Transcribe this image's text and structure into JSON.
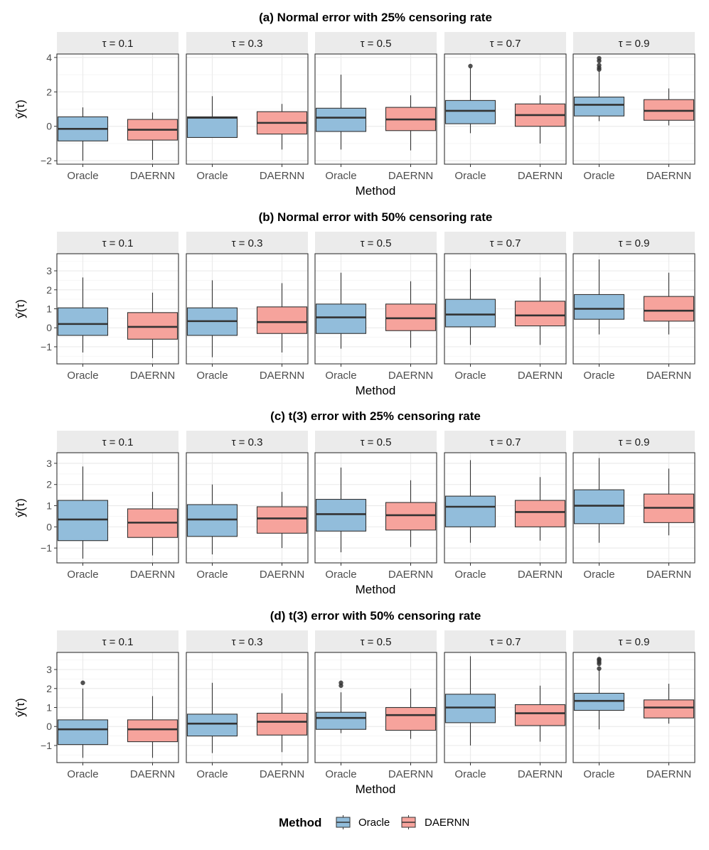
{
  "chart_data": {
    "type": "boxplot",
    "legend": {
      "title": "Method",
      "position": "bottom",
      "entries": [
        {
          "label": "Oracle",
          "color": "#92BDDB"
        },
        {
          "label": "DAERNN",
          "color": "#F6A39C"
        }
      ]
    },
    "categories": [
      "Oracle",
      "DAERNN"
    ],
    "xlabel": "Method",
    "ylabel": "ŷ(τ)",
    "facet_labels": [
      "τ = 0.1",
      "τ = 0.3",
      "τ = 0.5",
      "τ = 0.7",
      "τ = 0.9"
    ],
    "panels": [
      {
        "title": "(a)  Normal error with 25% censoring rate",
        "ylim": [
          -2.2,
          4.2
        ],
        "yticks": [
          -2,
          0,
          2,
          4
        ],
        "facets": [
          {
            "Oracle": {
              "min": -2.0,
              "q1": -0.85,
              "median": -0.15,
              "q3": 0.55,
              "max": 1.1,
              "outliers": []
            },
            "DAERNN": {
              "min": -1.95,
              "q1": -0.8,
              "median": -0.2,
              "q3": 0.4,
              "max": 0.8,
              "outliers": []
            }
          },
          {
            "Oracle": {
              "min": -0.65,
              "q1": -0.65,
              "median": 0.5,
              "q3": 0.55,
              "max": 1.75,
              "outliers": []
            },
            "DAERNN": {
              "min": -1.35,
              "q1": -0.45,
              "median": 0.2,
              "q3": 0.85,
              "max": 1.3,
              "outliers": []
            }
          },
          {
            "Oracle": {
              "min": -1.35,
              "q1": -0.3,
              "median": 0.5,
              "q3": 1.05,
              "max": 3.0,
              "outliers": []
            },
            "DAERNN": {
              "min": -1.4,
              "q1": -0.25,
              "median": 0.4,
              "q3": 1.1,
              "max": 1.8,
              "outliers": []
            }
          },
          {
            "Oracle": {
              "min": -0.4,
              "q1": 0.15,
              "median": 0.9,
              "q3": 1.5,
              "max": 3.4,
              "outliers": [
                3.5
              ]
            },
            "DAERNN": {
              "min": -1.0,
              "q1": 0.0,
              "median": 0.65,
              "q3": 1.3,
              "max": 1.8,
              "outliers": []
            }
          },
          {
            "Oracle": {
              "min": 0.3,
              "q1": 0.6,
              "median": 1.25,
              "q3": 1.7,
              "max": 3.2,
              "outliers": [
                3.3,
                3.4,
                3.55,
                3.8,
                3.95
              ]
            },
            "DAERNN": {
              "min": 0.05,
              "q1": 0.35,
              "median": 0.9,
              "q3": 1.55,
              "max": 2.2,
              "outliers": []
            }
          }
        ]
      },
      {
        "title": "(b)  Normal error with 50% censoring rate",
        "ylim": [
          -1.9,
          3.9
        ],
        "yticks": [
          -1,
          0,
          1,
          2,
          3
        ],
        "facets": [
          {
            "Oracle": {
              "min": -1.3,
              "q1": -0.4,
              "median": 0.2,
              "q3": 1.05,
              "max": 2.65,
              "outliers": []
            },
            "DAERNN": {
              "min": -1.6,
              "q1": -0.6,
              "median": 0.05,
              "q3": 0.8,
              "max": 1.85,
              "outliers": []
            }
          },
          {
            "Oracle": {
              "min": -1.55,
              "q1": -0.4,
              "median": 0.35,
              "q3": 1.05,
              "max": 2.5,
              "outliers": []
            },
            "DAERNN": {
              "min": -1.3,
              "q1": -0.3,
              "median": 0.3,
              "q3": 1.1,
              "max": 2.35,
              "outliers": []
            }
          },
          {
            "Oracle": {
              "min": -1.1,
              "q1": -0.3,
              "median": 0.55,
              "q3": 1.25,
              "max": 2.9,
              "outliers": []
            },
            "DAERNN": {
              "min": -1.05,
              "q1": -0.15,
              "median": 0.5,
              "q3": 1.25,
              "max": 2.45,
              "outliers": []
            }
          },
          {
            "Oracle": {
              "min": -0.9,
              "q1": 0.05,
              "median": 0.7,
              "q3": 1.5,
              "max": 3.1,
              "outliers": []
            },
            "DAERNN": {
              "min": -0.9,
              "q1": 0.1,
              "median": 0.65,
              "q3": 1.4,
              "max": 2.65,
              "outliers": []
            }
          },
          {
            "Oracle": {
              "min": -0.35,
              "q1": 0.45,
              "median": 1.0,
              "q3": 1.75,
              "max": 3.6,
              "outliers": []
            },
            "DAERNN": {
              "min": -0.35,
              "q1": 0.35,
              "median": 0.9,
              "q3": 1.65,
              "max": 2.9,
              "outliers": []
            }
          }
        ]
      },
      {
        "title": "(c)  t(3) error with 25% censoring rate",
        "ylim": [
          -1.7,
          3.5
        ],
        "yticks": [
          -1,
          0,
          1,
          2,
          3
        ],
        "facets": [
          {
            "Oracle": {
              "min": -1.5,
              "q1": -0.65,
              "median": 0.35,
              "q3": 1.25,
              "max": 2.85,
              "outliers": []
            },
            "DAERNN": {
              "min": -1.35,
              "q1": -0.5,
              "median": 0.2,
              "q3": 0.85,
              "max": 1.65,
              "outliers": []
            }
          },
          {
            "Oracle": {
              "min": -1.3,
              "q1": -0.45,
              "median": 0.35,
              "q3": 1.05,
              "max": 2.0,
              "outliers": []
            },
            "DAERNN": {
              "min": -1.0,
              "q1": -0.3,
              "median": 0.4,
              "q3": 0.95,
              "max": 1.65,
              "outliers": []
            }
          },
          {
            "Oracle": {
              "min": -1.2,
              "q1": -0.2,
              "median": 0.6,
              "q3": 1.3,
              "max": 2.8,
              "outliers": []
            },
            "DAERNN": {
              "min": -0.95,
              "q1": -0.15,
              "median": 0.55,
              "q3": 1.15,
              "max": 2.2,
              "outliers": []
            }
          },
          {
            "Oracle": {
              "min": -0.75,
              "q1": 0.0,
              "median": 0.95,
              "q3": 1.45,
              "max": 3.15,
              "outliers": []
            },
            "DAERNN": {
              "min": -0.65,
              "q1": 0.0,
              "median": 0.7,
              "q3": 1.25,
              "max": 2.35,
              "outliers": []
            }
          },
          {
            "Oracle": {
              "min": -0.75,
              "q1": 0.15,
              "median": 1.0,
              "q3": 1.75,
              "max": 3.25,
              "outliers": []
            },
            "DAERNN": {
              "min": -0.4,
              "q1": 0.2,
              "median": 0.9,
              "q3": 1.55,
              "max": 2.75,
              "outliers": []
            }
          }
        ]
      },
      {
        "title": "(d)  t(3) error with 50% censoring rate",
        "ylim": [
          -1.9,
          3.9
        ],
        "yticks": [
          -1,
          0,
          1,
          2,
          3
        ],
        "facets": [
          {
            "Oracle": {
              "min": -1.65,
              "q1": -0.95,
              "median": -0.15,
              "q3": 0.35,
              "max": 2.0,
              "outliers": [
                2.3
              ]
            },
            "DAERNN": {
              "min": -1.65,
              "q1": -0.8,
              "median": -0.15,
              "q3": 0.35,
              "max": 1.6,
              "outliers": []
            }
          },
          {
            "Oracle": {
              "min": -1.4,
              "q1": -0.5,
              "median": 0.15,
              "q3": 0.65,
              "max": 2.3,
              "outliers": []
            },
            "DAERNN": {
              "min": -1.35,
              "q1": -0.45,
              "median": 0.25,
              "q3": 0.7,
              "max": 1.75,
              "outliers": []
            }
          },
          {
            "Oracle": {
              "min": -0.35,
              "q1": -0.15,
              "median": 0.45,
              "q3": 0.75,
              "max": 1.8,
              "outliers": [
                2.15,
                2.3
              ]
            },
            "DAERNN": {
              "min": -0.65,
              "q1": -0.2,
              "median": 0.6,
              "q3": 1.0,
              "max": 2.0,
              "outliers": []
            }
          },
          {
            "Oracle": {
              "min": -1.0,
              "q1": 0.2,
              "median": 1.0,
              "q3": 1.7,
              "max": 3.7,
              "outliers": []
            },
            "DAERNN": {
              "min": -0.8,
              "q1": 0.05,
              "median": 0.7,
              "q3": 1.15,
              "max": 2.15,
              "outliers": []
            }
          },
          {
            "Oracle": {
              "min": -0.15,
              "q1": 0.85,
              "median": 1.35,
              "q3": 1.75,
              "max": 3.0,
              "outliers": [
                3.05,
                3.3,
                3.4,
                3.5,
                3.55
              ]
            },
            "DAERNN": {
              "min": 0.15,
              "q1": 0.45,
              "median": 1.0,
              "q3": 1.4,
              "max": 2.25,
              "outliers": []
            }
          }
        ]
      }
    ]
  }
}
